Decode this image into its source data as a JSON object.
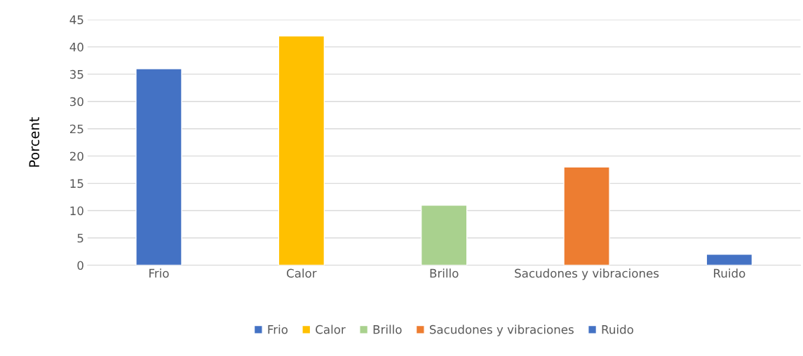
{
  "chart_data": {
    "type": "bar",
    "ylabel": "Porcent",
    "categories": [
      "Frio",
      "Calor",
      "Brillo",
      "Sacudones y vibraciones",
      "Ruido"
    ],
    "series": [
      {
        "name": "Frio",
        "color": "#4472c4",
        "values": [
          36,
          null,
          null,
          null,
          null
        ]
      },
      {
        "name": "Calor",
        "color": "#ffc000",
        "values": [
          null,
          42,
          null,
          null,
          null
        ]
      },
      {
        "name": "Brillo",
        "color": "#a9d18e",
        "values": [
          null,
          null,
          11,
          null,
          null
        ]
      },
      {
        "name": "Sacudones y vibraciones",
        "color": "#ed7d31",
        "values": [
          null,
          null,
          null,
          18,
          null
        ]
      },
      {
        "name": "Ruido",
        "color": "#4472c4",
        "values": [
          null,
          null,
          null,
          null,
          2
        ]
      }
    ],
    "ylim": [
      0,
      45
    ],
    "yticks": [
      0,
      5,
      10,
      15,
      20,
      25,
      30,
      35,
      40,
      45
    ],
    "grid": "y",
    "legend": "bottom"
  }
}
